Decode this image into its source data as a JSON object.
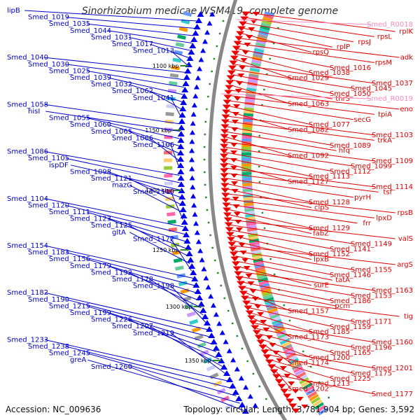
{
  "title": "Sinorhizobium medicae WSM419, complete genome",
  "accession": "Accession: NC_009636",
  "summary": "Topology: circular; Length: 3,781,904 bp; Genes: 3,592",
  "colors": {
    "left_label": "#0000cc",
    "right_label": "#dd0000",
    "rna_label": "#ff88bb",
    "backbone": "#888888",
    "scale_tick": "#2a8a2a"
  },
  "scale_labels": [
    "1100 kbp",
    "1150 kbp",
    "1200 kbp",
    "1250 kbp",
    "1300 kbp",
    "1350 kbp"
  ],
  "left_labels": [
    "lipB",
    "Smed_1019",
    "Smed_1035",
    "Smed_1044",
    "Smed_1031",
    "Smed_1017",
    "Smed_1013",
    "Smed_1040",
    "Smed_1030",
    "Smed_1025",
    "Smed_1039",
    "Smed_1032",
    "Smed_1062",
    "Smed_1041",
    "Smed_1058",
    "hisI",
    "Smed_1055",
    "Smed_1060",
    "Smed_1065",
    "Smed_1066",
    "Smed_1106",
    "Smed_1086",
    "Smed_1105",
    "ispDF",
    "Smed_1098",
    "Smed_1121",
    "mazG",
    "Smed_1110",
    "Smed_1104",
    "Smed_1120",
    "Smed_1111",
    "Smed_1123",
    "Smed_1125",
    "gltA",
    "Smed_1172",
    "Smed_1154",
    "Smed_1183",
    "Smed_1156",
    "Smed_1179",
    "Smed_1192",
    "Smed_1178",
    "Smed_1198",
    "Smed_1182",
    "Smed_1190",
    "Smed_1215",
    "Smed_1199",
    "Smed_1226",
    "Smed_1207",
    "Smed_1219",
    "Smed_1233",
    "Smed_1238",
    "Smed_1245",
    "greA",
    "Smed_1260"
  ],
  "right_labels": [
    "rplK",
    "rpsL",
    "rpsJ",
    "rplP",
    "rpsQ",
    "adk",
    "rpsM",
    "Smed_1016",
    "Smed_1038",
    "Smed_1029",
    "Smed_1037",
    "Smed_1045",
    "Smed_1050",
    "thrS",
    "Smed_1063",
    "eno",
    "tpiA",
    "secG",
    "Smed_1077",
    "Smed_1082",
    "Smed_1103",
    "trkA",
    "Smed_1089",
    "hfq",
    "Smed_1092",
    "Smed_1109",
    "Smed_1099",
    "Smed_1112",
    "Smed_1113",
    "Smed_1127",
    "Smed_1114",
    "tsf",
    "pyrH",
    "Smed_1128",
    "clpS",
    "rpsB",
    "lpxD",
    "frr",
    "Smed_1129",
    "fabZ",
    "valS",
    "Smed_1149",
    "Smed_1141",
    "Smed_1152",
    "lpxB",
    "argS",
    "Smed_1155",
    "Smed_1146",
    "tatA",
    "surE",
    "Smed_1163",
    "Smed_1153",
    "Smed_1186",
    "pcm",
    "Smed_1157",
    "tig",
    "Smed_1171",
    "Smed_1159",
    "Smed_1185",
    "Smed_1173",
    "Smed_1160",
    "Smed_1196",
    "Smed_1165",
    "Smed_1200",
    "Smed_1174",
    "Smed_1201",
    "Smed_1175",
    "Smed_1225",
    "Smed_1213",
    "Smed_1202",
    "Smed_1177"
  ],
  "rna_labels": [
    "Smed_R0018",
    "Smed_R0019"
  ]
}
